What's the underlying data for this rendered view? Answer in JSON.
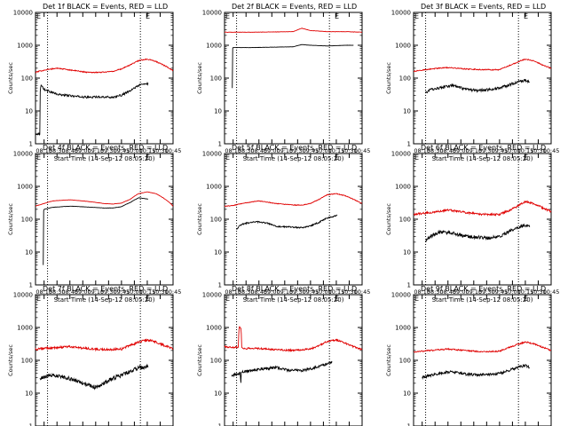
{
  "figure": {
    "x_tick_labels": [
      "08:15",
      "08:30",
      "08:45",
      "09:00",
      "09:15",
      "09:30",
      "09:45",
      "10:00",
      "10:15",
      "10:30",
      "10:45"
    ],
    "x_label": "Start Time (14-Sep-12 08:05:20)",
    "y_label": "Counts/sec",
    "y_tick_labels": [
      "1",
      "10",
      "100",
      "1000",
      "10000"
    ],
    "colors": {
      "events": "#000000",
      "lld": "#e00000",
      "axes": "#000000"
    },
    "marker_glyph": "E"
  },
  "chart_data": [
    {
      "type": "line",
      "title": "Det 1f BLACK = Events, RED = LLD",
      "ylabel": "Counts/sec",
      "xlabel": "Start Time (14-Sep-12 08:05:20)",
      "yscale": "log",
      "ylim": [
        1,
        10000
      ],
      "xlim_minutes": [
        0,
        160
      ],
      "vlines_minutes": [
        14,
        122
      ],
      "marker_minutes": 128,
      "series": [
        {
          "name": "Events",
          "color": "#000000",
          "noise": 0.03,
          "x": [
            0,
            5,
            5.5,
            6,
            7,
            10,
            25,
            45,
            60,
            75,
            90,
            100,
            110,
            120,
            125,
            131
          ],
          "y": [
            2,
            2,
            40,
            55,
            60,
            45,
            32,
            28,
            26,
            27,
            26,
            30,
            40,
            60,
            65,
            68
          ]
        },
        {
          "name": "LLD",
          "color": "#e00000",
          "noise": 0.015,
          "x": [
            0,
            10,
            25,
            45,
            60,
            75,
            90,
            100,
            110,
            120,
            130,
            140,
            150,
            160
          ],
          "y": [
            150,
            175,
            200,
            170,
            150,
            150,
            160,
            190,
            250,
            340,
            380,
            320,
            240,
            170
          ]
        }
      ]
    },
    {
      "type": "line",
      "title": "Det 2f BLACK = Events, RED = LLD",
      "ylabel": "Counts/sec",
      "xlabel": "Start Time (14-Sep-12 08:05:20)",
      "yscale": "log",
      "ylim": [
        1,
        10000
      ],
      "xlim_minutes": [
        0,
        160
      ],
      "vlines_minutes": [
        14,
        122
      ],
      "marker_minutes": 128,
      "series": [
        {
          "name": "Events",
          "color": "#000000",
          "noise": 0.003,
          "x": [
            9,
            9.5,
            10,
            30,
            60,
            80,
            90,
            100,
            120,
            140,
            150
          ],
          "y": [
            50,
            800,
            850,
            850,
            880,
            900,
            1050,
            1000,
            950,
            1000,
            1000
          ]
        },
        {
          "name": "LLD",
          "color": "#e00000",
          "noise": 0.005,
          "x": [
            0,
            30,
            60,
            80,
            90,
            100,
            120,
            140,
            160
          ],
          "y": [
            2500,
            2500,
            2550,
            2600,
            3300,
            2800,
            2600,
            2600,
            2500
          ]
        }
      ]
    },
    {
      "type": "line",
      "title": "Det 3f BLACK = Events, RED = LLD",
      "ylabel": "Counts/sec",
      "xlabel": "Start Time (14-Sep-12 08:05:20)",
      "yscale": "log",
      "ylim": [
        1,
        10000
      ],
      "xlim_minutes": [
        0,
        160
      ],
      "vlines_minutes": [
        14,
        122
      ],
      "marker_minutes": 128,
      "series": [
        {
          "name": "Events",
          "color": "#000000",
          "noise": 0.04,
          "x": [
            14,
            20,
            30,
            45,
            60,
            75,
            90,
            100,
            110,
            120,
            130,
            135
          ],
          "y": [
            35,
            45,
            50,
            60,
            45,
            42,
            45,
            50,
            60,
            75,
            85,
            75
          ]
        },
        {
          "name": "LLD",
          "color": "#e00000",
          "noise": 0.015,
          "x": [
            0,
            20,
            40,
            60,
            80,
            100,
            110,
            120,
            130,
            140,
            150,
            160
          ],
          "y": [
            160,
            190,
            210,
            190,
            180,
            180,
            230,
            300,
            380,
            330,
            250,
            200
          ]
        }
      ]
    },
    {
      "type": "line",
      "title": "Det 4f BLACK = Events, RED = LLD",
      "ylabel": "Counts/sec",
      "xlabel": "Start Time (14-Sep-12 08:05:20)",
      "yscale": "log",
      "ylim": [
        1,
        10000
      ],
      "xlim_minutes": [
        0,
        160
      ],
      "vlines_minutes": [
        14,
        122
      ],
      "marker_minutes": 128,
      "series": [
        {
          "name": "Events",
          "color": "#000000",
          "noise": 0.004,
          "x": [
            9,
            9.5,
            10,
            20,
            40,
            60,
            80,
            90,
            100,
            110,
            120,
            131
          ],
          "y": [
            4,
            180,
            200,
            230,
            250,
            235,
            220,
            220,
            240,
            320,
            450,
            410
          ]
        },
        {
          "name": "LLD",
          "color": "#e00000",
          "noise": 0.004,
          "x": [
            0,
            10,
            20,
            40,
            60,
            80,
            90,
            100,
            110,
            120,
            130,
            140,
            150,
            160
          ],
          "y": [
            250,
            300,
            360,
            390,
            350,
            300,
            290,
            310,
            400,
            600,
            680,
            600,
            420,
            250
          ]
        }
      ]
    },
    {
      "type": "line",
      "title": "Det 5f BLACK = Events, RED = LLD",
      "ylabel": "Counts/sec",
      "xlabel": "Start Time (14-Sep-12 08:05:20)",
      "yscale": "log",
      "ylim": [
        1,
        10000
      ],
      "xlim_minutes": [
        0,
        160
      ],
      "vlines_minutes": [
        14,
        122
      ],
      "marker_minutes": 128,
      "series": [
        {
          "name": "Events",
          "color": "#000000",
          "noise": 0.02,
          "x": [
            14,
            20,
            35,
            50,
            60,
            75,
            90,
            100,
            110,
            120,
            131
          ],
          "y": [
            50,
            70,
            85,
            75,
            60,
            58,
            55,
            62,
            80,
            110,
            130
          ]
        },
        {
          "name": "LLD",
          "color": "#e00000",
          "noise": 0.01,
          "x": [
            0,
            10,
            20,
            40,
            60,
            80,
            90,
            100,
            110,
            120,
            130,
            140,
            150,
            160
          ],
          "y": [
            250,
            260,
            300,
            360,
            300,
            270,
            270,
            300,
            400,
            560,
            600,
            520,
            400,
            300
          ]
        }
      ]
    },
    {
      "type": "line",
      "title": "Det 6f BLACK = Events, RED = LLD",
      "ylabel": "Counts/sec",
      "xlabel": "Start Time (14-Sep-12 08:05:20)",
      "yscale": "log",
      "ylim": [
        1,
        10000
      ],
      "xlim_minutes": [
        0,
        160
      ],
      "vlines_minutes": [
        14,
        122
      ],
      "marker_minutes": 128,
      "series": [
        {
          "name": "Events",
          "color": "#000000",
          "noise": 0.05,
          "x": [
            14,
            20,
            30,
            45,
            60,
            75,
            90,
            100,
            110,
            120,
            130,
            135
          ],
          "y": [
            22,
            30,
            40,
            38,
            30,
            28,
            27,
            30,
            40,
            55,
            65,
            62
          ]
        },
        {
          "name": "LLD",
          "color": "#e00000",
          "noise": 0.03,
          "x": [
            0,
            20,
            40,
            60,
            80,
            100,
            110,
            120,
            130,
            140,
            150,
            160
          ],
          "y": [
            140,
            160,
            190,
            160,
            140,
            140,
            180,
            240,
            340,
            300,
            220,
            170
          ]
        }
      ]
    },
    {
      "type": "line",
      "title": "Det 7f BLACK = Events, RED = LLD",
      "ylabel": "Counts/sec",
      "xlabel": "Start Time (14-Sep-12 08:05:20)",
      "yscale": "log",
      "ylim": [
        1,
        10000
      ],
      "xlim_minutes": [
        0,
        160
      ],
      "vlines_minutes": [
        14,
        122
      ],
      "marker_minutes": 128,
      "series": [
        {
          "name": "Events",
          "color": "#000000",
          "noise": 0.06,
          "x": [
            5,
            10,
            20,
            35,
            50,
            60,
            70,
            80,
            90,
            100,
            110,
            120,
            131
          ],
          "y": [
            25,
            32,
            35,
            30,
            22,
            18,
            15,
            20,
            28,
            35,
            45,
            60,
            65
          ]
        },
        {
          "name": "LLD",
          "color": "#e00000",
          "noise": 0.035,
          "x": [
            0,
            20,
            40,
            60,
            80,
            100,
            110,
            120,
            130,
            140,
            150,
            160
          ],
          "y": [
            220,
            240,
            260,
            230,
            210,
            220,
            280,
            360,
            420,
            360,
            280,
            230
          ]
        }
      ]
    },
    {
      "type": "line",
      "title": "Det 8f BLACK = Events, RED = LLD",
      "ylabel": "Counts/sec",
      "xlabel": "Start Time (14-Sep-12 08:05:20)",
      "yscale": "log",
      "ylim": [
        1,
        10000
      ],
      "xlim_minutes": [
        0,
        160
      ],
      "vlines_minutes": [
        14,
        122
      ],
      "marker_minutes": 128,
      "series": [
        {
          "name": "Events",
          "color": "#000000",
          "noise": 0.04,
          "x": [
            8,
            18,
            19,
            19.5,
            20,
            30,
            45,
            60,
            75,
            90,
            100,
            110,
            120,
            125
          ],
          "y": [
            35,
            40,
            20,
            45,
            45,
            48,
            55,
            60,
            50,
            48,
            55,
            65,
            80,
            85
          ]
        },
        {
          "name": "LLD",
          "color": "#e00000",
          "noise": 0.025,
          "x": [
            0,
            10,
            16,
            17,
            19,
            20,
            21,
            25,
            40,
            60,
            80,
            100,
            110,
            120,
            130,
            140,
            150,
            160
          ],
          "y": [
            260,
            250,
            250,
            1000,
            1000,
            260,
            240,
            230,
            230,
            210,
            200,
            220,
            280,
            380,
            420,
            330,
            260,
            210
          ]
        }
      ]
    },
    {
      "type": "line",
      "title": "Det 9f BLACK = Events, RED = LLD",
      "ylabel": "Counts/sec",
      "xlabel": "Start Time (14-Sep-12 08:05:20)",
      "yscale": "log",
      "ylim": [
        1,
        10000
      ],
      "xlim_minutes": [
        0,
        160
      ],
      "vlines_minutes": [
        14,
        122
      ],
      "marker_minutes": 128,
      "series": [
        {
          "name": "Events",
          "color": "#000000",
          "noise": 0.04,
          "x": [
            10,
            20,
            30,
            45,
            60,
            75,
            90,
            100,
            110,
            120,
            130,
            135
          ],
          "y": [
            30,
            35,
            40,
            45,
            38,
            36,
            38,
            40,
            48,
            60,
            70,
            62
          ]
        },
        {
          "name": "LLD",
          "color": "#e00000",
          "noise": 0.02,
          "x": [
            0,
            20,
            40,
            60,
            80,
            100,
            110,
            120,
            130,
            140,
            150,
            160
          ],
          "y": [
            180,
            200,
            220,
            200,
            180,
            190,
            240,
            300,
            360,
            320,
            250,
            200
          ]
        }
      ]
    }
  ]
}
